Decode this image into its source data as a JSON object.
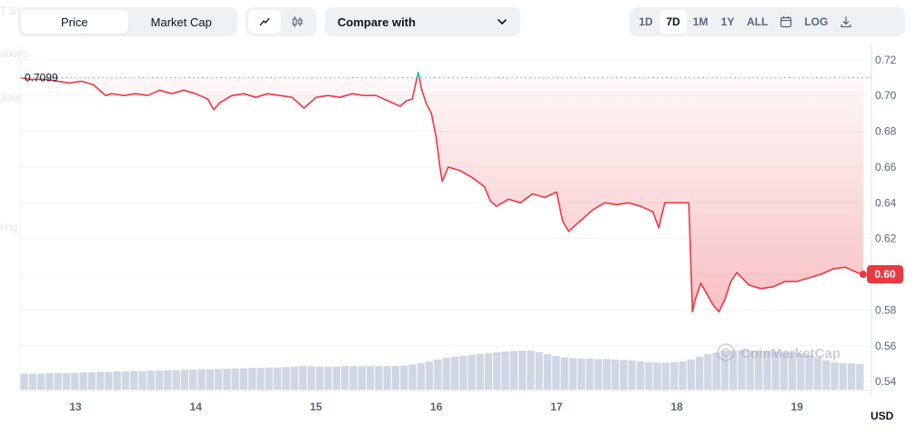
{
  "ghost_labels": [
    "T Stats",
    "ations",
    "Sale",
    "ting"
  ],
  "toolbar": {
    "chart_type_tabs": [
      {
        "label": "Price",
        "active": true
      },
      {
        "label": "Market Cap",
        "active": false
      }
    ],
    "chart_kind": [
      {
        "icon": "line-chart-icon",
        "active": true
      },
      {
        "icon": "candlestick-icon",
        "active": false
      }
    ],
    "compare_label": "Compare with",
    "ranges": [
      {
        "label": "1D",
        "active": false
      },
      {
        "label": "7D",
        "active": true
      },
      {
        "label": "1M",
        "active": false
      },
      {
        "label": "1Y",
        "active": false
      },
      {
        "label": "ALL",
        "active": false
      }
    ],
    "calendar_icon": "calendar-icon",
    "log_label": "LOG",
    "download_icon": "download-icon"
  },
  "chart": {
    "watermark": "CoinMarketCap",
    "start_price_label": "0.7099",
    "current_price_label": "0.60",
    "currency": "USD",
    "colors": {
      "down": "#ea3943",
      "up": "#16c784",
      "volume": "#cfd6e4",
      "grid": "#eff2f5"
    }
  },
  "chart_data": {
    "type": "line",
    "x_ticks": [
      "13",
      "14",
      "15",
      "16",
      "17",
      "18",
      "19"
    ],
    "y_ticks": [
      0.72,
      0.7,
      0.68,
      0.66,
      0.64,
      0.62,
      0.6,
      0.58,
      0.56,
      0.54
    ],
    "ylim": [
      0.535,
      0.726
    ],
    "xlim": [
      12.55,
      19.55
    ],
    "baseline": 0.7099,
    "series": [
      {
        "x": [
          12.55,
          12.62,
          12.75,
          12.85,
          12.95,
          13.05,
          13.15,
          13.25,
          13.3,
          13.4,
          13.5,
          13.6,
          13.7,
          13.8,
          13.9,
          14.0,
          14.1,
          14.15,
          14.2,
          14.3,
          14.4,
          14.5,
          14.6,
          14.7,
          14.8,
          14.9,
          15.0,
          15.1,
          15.2,
          15.3,
          15.4,
          15.5,
          15.6,
          15.7,
          15.75,
          15.8,
          15.85,
          15.88,
          15.92,
          15.96,
          16.0,
          16.03,
          16.05,
          16.1,
          16.2,
          16.3,
          16.4,
          16.45,
          16.5,
          16.6,
          16.7,
          16.8,
          16.9,
          17.0,
          17.05,
          17.1,
          17.2,
          17.3,
          17.4,
          17.5,
          17.6,
          17.7,
          17.8,
          17.85,
          17.9,
          18.0,
          18.1,
          18.13,
          18.15,
          18.2,
          18.3,
          18.35,
          18.4,
          18.45,
          18.5,
          18.6,
          18.7,
          18.8,
          18.9,
          19.0,
          19.1,
          19.2,
          19.3,
          19.4,
          19.5,
          19.55
        ],
        "y": [
          0.7099,
          0.709,
          0.709,
          0.708,
          0.707,
          0.708,
          0.706,
          0.7,
          0.701,
          0.7,
          0.701,
          0.7,
          0.703,
          0.701,
          0.703,
          0.701,
          0.698,
          0.692,
          0.696,
          0.7,
          0.701,
          0.699,
          0.701,
          0.7,
          0.699,
          0.693,
          0.699,
          0.7,
          0.699,
          0.701,
          0.7,
          0.7,
          0.697,
          0.694,
          0.697,
          0.698,
          0.713,
          0.703,
          0.695,
          0.69,
          0.676,
          0.66,
          0.652,
          0.66,
          0.658,
          0.654,
          0.649,
          0.641,
          0.638,
          0.642,
          0.64,
          0.645,
          0.643,
          0.646,
          0.63,
          0.624,
          0.63,
          0.636,
          0.64,
          0.639,
          0.64,
          0.638,
          0.635,
          0.626,
          0.64,
          0.64,
          0.64,
          0.579,
          0.585,
          0.595,
          0.583,
          0.579,
          0.586,
          0.596,
          0.601,
          0.594,
          0.592,
          0.593,
          0.596,
          0.596,
          0.598,
          0.6,
          0.603,
          0.604,
          0.601,
          0.6
        ]
      }
    ],
    "volume": [
      0.36,
      0.36,
      0.36,
      0.37,
      0.37,
      0.37,
      0.38,
      0.39,
      0.39,
      0.4,
      0.4,
      0.41,
      0.41,
      0.42,
      0.42,
      0.43,
      0.43,
      0.44,
      0.44,
      0.45,
      0.45,
      0.46,
      0.46,
      0.47,
      0.47,
      0.48,
      0.48,
      0.49,
      0.49,
      0.5,
      0.5,
      0.51,
      0.52,
      0.53,
      0.53,
      0.52,
      0.52,
      0.52,
      0.53,
      0.53,
      0.53,
      0.53,
      0.53,
      0.53,
      0.53,
      0.54,
      0.57,
      0.6,
      0.64,
      0.68,
      0.72,
      0.74,
      0.76,
      0.78,
      0.8,
      0.82,
      0.84,
      0.86,
      0.87,
      0.88,
      0.88,
      0.84,
      0.8,
      0.76,
      0.73,
      0.71,
      0.7,
      0.7,
      0.69,
      0.69,
      0.68,
      0.67,
      0.66,
      0.64,
      0.62,
      0.61,
      0.61,
      0.62,
      0.64,
      0.68,
      0.74,
      0.8,
      0.84,
      0.88,
      0.88,
      0.89,
      0.88,
      0.88,
      0.87,
      0.86,
      0.85,
      0.84,
      0.82,
      0.78,
      0.72,
      0.66,
      0.62,
      0.6,
      0.59,
      0.58
    ],
    "volume_ylim": [
      0,
      1
    ]
  }
}
